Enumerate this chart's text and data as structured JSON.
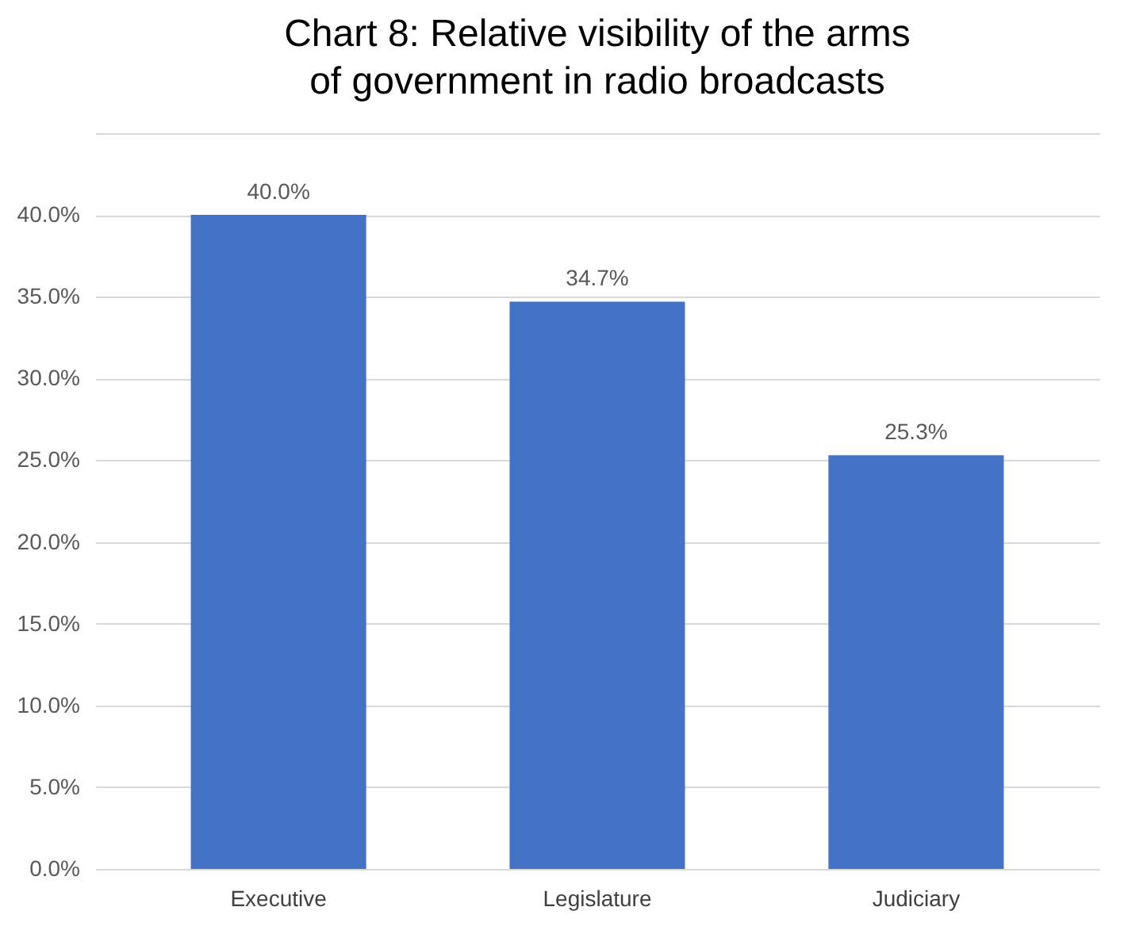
{
  "chart_data": {
    "type": "bar",
    "title": "Chart 8: Relative visibility of the arms of government in radio broadcasts",
    "categories": [
      "Executive",
      "Legislature",
      "Judiciary"
    ],
    "values": [
      40.0,
      34.7,
      25.3
    ],
    "color": "#4472c4",
    "value_labels": [
      "40.0%",
      "34.7%",
      "25.3%"
    ],
    "ylim": [
      0,
      45
    ],
    "yticks": [
      {
        "value": 0,
        "label": "0.0%"
      },
      {
        "value": 5,
        "label": "5.0%"
      },
      {
        "value": 10,
        "label": "10.0%"
      },
      {
        "value": 15,
        "label": "15.0%"
      },
      {
        "value": 20,
        "label": "20.0%"
      },
      {
        "value": 25,
        "label": "25.0%"
      },
      {
        "value": 30,
        "label": "30.0%"
      },
      {
        "value": 35,
        "label": "35.0%"
      },
      {
        "value": 40,
        "label": "40.0%"
      },
      {
        "value": 45,
        "label": null
      }
    ],
    "grid": true
  }
}
